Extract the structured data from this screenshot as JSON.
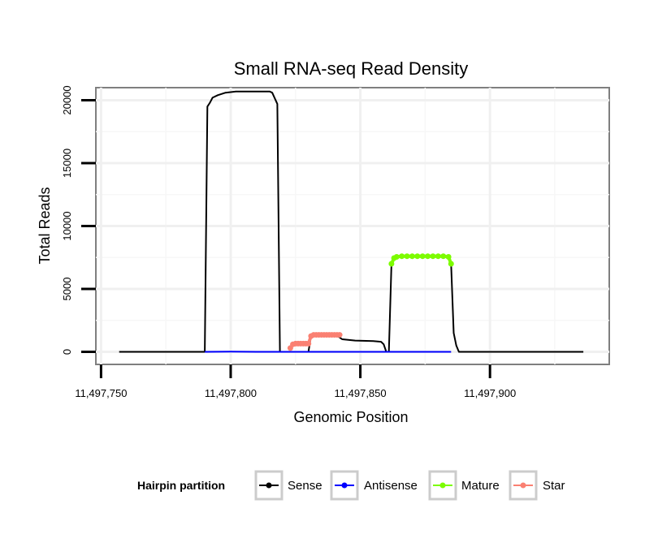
{
  "chart_data": {
    "type": "line",
    "title": "Small RNA-seq Read Density",
    "xlabel": "Genomic Position",
    "ylabel": "Total Reads",
    "xlim": [
      11497748,
      11497946
    ],
    "ylim": [
      -1000,
      21000
    ],
    "x_ticks": [
      {
        "value": 11497750,
        "label": "11,497,750"
      },
      {
        "value": 11497800,
        "label": "11,497,800"
      },
      {
        "value": 11497850,
        "label": "11,497,850"
      },
      {
        "value": 11497900,
        "label": "11,497,900"
      }
    ],
    "y_ticks": [
      {
        "value": 0,
        "label": "0"
      },
      {
        "value": 5000,
        "label": "5000"
      },
      {
        "value": 10000,
        "label": "10000"
      },
      {
        "value": 15000,
        "label": "15000"
      },
      {
        "value": 20000,
        "label": "20000"
      }
    ],
    "grid": true,
    "legend": {
      "title": "Hairpin partition",
      "position": "bottom",
      "entries": [
        {
          "name": "Sense",
          "color": "#000000"
        },
        {
          "name": "Antisense",
          "color": "#0000ff"
        },
        {
          "name": "Mature",
          "color": "#7cfc00"
        },
        {
          "name": "Star",
          "color": "#fa8072"
        }
      ]
    },
    "series": [
      {
        "name": "Sense",
        "color": "#000000",
        "points": false,
        "x": [
          11497757,
          11497790,
          11497791,
          11497792,
          11497793,
          11497795,
          11497798,
          11497802,
          11497808,
          11497812,
          11497815,
          11497816,
          11497818,
          11497819,
          11497823,
          11497826,
          11497829,
          11497830,
          11497831,
          11497833,
          11497841,
          11497843,
          11497848,
          11497855,
          11497858,
          11497859,
          11497860,
          11497861,
          11497862,
          11497864,
          11497880,
          11497884,
          11497885,
          11497886,
          11497887,
          11497888,
          11497936
        ],
        "y": [
          0,
          0,
          19500,
          19800,
          20200,
          20400,
          20600,
          20700,
          20700,
          20700,
          20700,
          20600,
          19700,
          0,
          0,
          0,
          0,
          0,
          1300,
          1300,
          1300,
          1000,
          900,
          850,
          800,
          600,
          0,
          0,
          7000,
          7600,
          7600,
          7600,
          7000,
          1500,
          500,
          0,
          0
        ]
      },
      {
        "name": "Antisense",
        "color": "#0000ff",
        "points": false,
        "x": [
          11497790,
          11497800,
          11497810,
          11497840,
          11497885
        ],
        "y": [
          0,
          20,
          0,
          0,
          0
        ]
      },
      {
        "name": "Mature",
        "color": "#7cfc00",
        "points": true,
        "x": [
          11497862,
          11497863,
          11497864,
          11497866,
          11497868,
          11497870,
          11497872,
          11497874,
          11497876,
          11497878,
          11497880,
          11497882,
          11497884,
          11497885
        ],
        "y": [
          7000,
          7450,
          7550,
          7600,
          7600,
          7600,
          7600,
          7600,
          7600,
          7600,
          7600,
          7600,
          7550,
          7000
        ]
      },
      {
        "name": "Star",
        "color": "#fa8072",
        "points": true,
        "x": [
          11497823,
          11497824,
          11497825,
          11497826,
          11497827,
          11497828,
          11497829,
          11497830,
          11497831,
          11497832,
          11497833,
          11497834,
          11497835,
          11497836,
          11497837,
          11497838,
          11497839,
          11497840,
          11497841,
          11497842
        ],
        "y": [
          300,
          600,
          650,
          650,
          650,
          650,
          650,
          650,
          1250,
          1350,
          1350,
          1350,
          1350,
          1350,
          1350,
          1350,
          1350,
          1350,
          1350,
          1350
        ]
      }
    ]
  }
}
